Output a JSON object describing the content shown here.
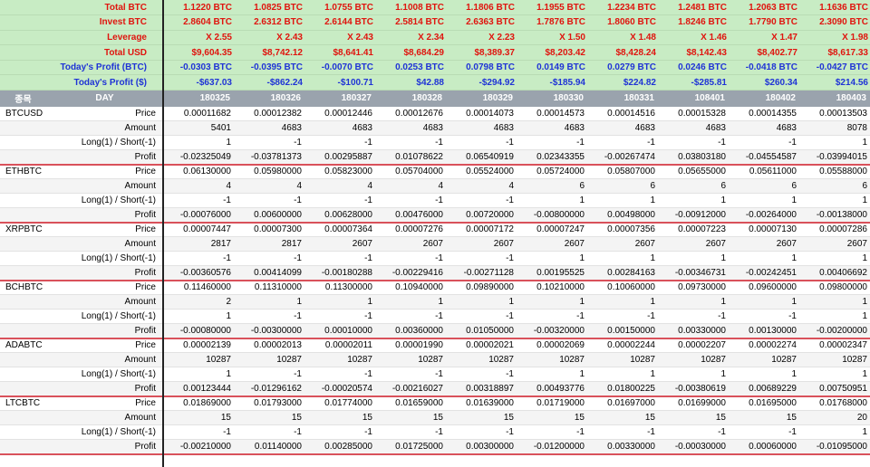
{
  "summary": [
    {
      "label": "Total BTC",
      "label_color": "red",
      "value_color": "red",
      "values": [
        "1.1220 BTC",
        "1.0825 BTC",
        "1.0755 BTC",
        "1.1008 BTC",
        "1.1806 BTC",
        "1.1955 BTC",
        "1.2234 BTC",
        "1.2481 BTC",
        "1.2063 BTC",
        "1.1636 BTC"
      ]
    },
    {
      "label": "Invest BTC",
      "label_color": "red",
      "value_color": "red",
      "values": [
        "2.8604 BTC",
        "2.6312 BTC",
        "2.6144 BTC",
        "2.5814 BTC",
        "2.6363 BTC",
        "1.7876 BTC",
        "1.8060 BTC",
        "1.8246 BTC",
        "1.7790 BTC",
        "2.3090 BTC"
      ]
    },
    {
      "label": "Leverage",
      "label_color": "red",
      "value_color": "red",
      "values": [
        "X 2.55",
        "X 2.43",
        "X 2.43",
        "X 2.34",
        "X 2.23",
        "X 1.50",
        "X 1.48",
        "X 1.46",
        "X 1.47",
        "X 1.98"
      ]
    },
    {
      "label": "Total USD",
      "label_color": "red",
      "value_color": "red",
      "values": [
        "$9,604.35",
        "$8,742.12",
        "$8,641.41",
        "$8,684.29",
        "$8,389.37",
        "$8,203.42",
        "$8,428.24",
        "$8,142.43",
        "$8,402.77",
        "$8,617.33"
      ]
    },
    {
      "label": "Today's Profit (BTC)",
      "label_color": "blue",
      "value_color": "blue",
      "values": [
        "-0.0303 BTC",
        "-0.0395 BTC",
        "-0.0070 BTC",
        "0.0253 BTC",
        "0.0798 BTC",
        "0.0149 BTC",
        "0.0279 BTC",
        "0.0246 BTC",
        "-0.0418 BTC",
        "-0.0427 BTC"
      ]
    },
    {
      "label": "Today's Profit ($)",
      "label_color": "blue",
      "value_color": "blue",
      "values": [
        "-$637.03",
        "-$862.24",
        "-$100.71",
        "$42.88",
        "-$294.92",
        "-$185.94",
        "$224.82",
        "-$285.81",
        "$260.34",
        "$214.56"
      ]
    }
  ],
  "header": {
    "symbol_col": "종목",
    "day_col": "DAY",
    "days": [
      "180325",
      "180326",
      "180327",
      "180328",
      "180329",
      "180330",
      "180331",
      "108401",
      "180402",
      "180403"
    ]
  },
  "row_labels": {
    "price": "Price",
    "amount": "Amount",
    "side": "Long(1) / Short(-1)",
    "profit": "Profit"
  },
  "groups": [
    {
      "symbol": "BTCUSD",
      "price": [
        "0.00011682",
        "0.00012382",
        "0.00012446",
        "0.00012676",
        "0.00014073",
        "0.00014573",
        "0.00014516",
        "0.00015328",
        "0.00014355",
        "0.00013503"
      ],
      "amount": [
        "5401",
        "4683",
        "4683",
        "4683",
        "4683",
        "4683",
        "4683",
        "4683",
        "4683",
        "8078"
      ],
      "side": [
        "1",
        "-1",
        "-1",
        "-1",
        "-1",
        "-1",
        "-1",
        "-1",
        "-1",
        "1"
      ],
      "profit": [
        "-0.02325049",
        "-0.03781373",
        "0.00295887",
        "0.01078622",
        "0.06540919",
        "0.02343355",
        "-0.00267474",
        "0.03803180",
        "-0.04554587",
        "-0.03994015"
      ]
    },
    {
      "symbol": "ETHBTC",
      "price": [
        "0.06130000",
        "0.05980000",
        "0.05823000",
        "0.05704000",
        "0.05524000",
        "0.05724000",
        "0.05807000",
        "0.05655000",
        "0.05611000",
        "0.05588000"
      ],
      "amount": [
        "4",
        "4",
        "4",
        "4",
        "4",
        "6",
        "6",
        "6",
        "6",
        "6"
      ],
      "side": [
        "-1",
        "-1",
        "-1",
        "-1",
        "-1",
        "1",
        "1",
        "1",
        "1",
        "1"
      ],
      "profit": [
        "-0.00076000",
        "0.00600000",
        "0.00628000",
        "0.00476000",
        "0.00720000",
        "-0.00800000",
        "0.00498000",
        "-0.00912000",
        "-0.00264000",
        "-0.00138000"
      ]
    },
    {
      "symbol": "XRPBTC",
      "price": [
        "0.00007447",
        "0.00007300",
        "0.00007364",
        "0.00007276",
        "0.00007172",
        "0.00007247",
        "0.00007356",
        "0.00007223",
        "0.00007130",
        "0.00007286"
      ],
      "amount": [
        "2817",
        "2817",
        "2607",
        "2607",
        "2607",
        "2607",
        "2607",
        "2607",
        "2607",
        "2607"
      ],
      "side": [
        "-1",
        "-1",
        "-1",
        "-1",
        "-1",
        "1",
        "1",
        "1",
        "1",
        "1"
      ],
      "profit": [
        "-0.00360576",
        "0.00414099",
        "-0.00180288",
        "-0.00229416",
        "-0.00271128",
        "0.00195525",
        "0.00284163",
        "-0.00346731",
        "-0.00242451",
        "0.00406692"
      ]
    },
    {
      "symbol": "BCHBTC",
      "price": [
        "0.11460000",
        "0.11310000",
        "0.11300000",
        "0.10940000",
        "0.09890000",
        "0.10210000",
        "0.10060000",
        "0.09730000",
        "0.09600000",
        "0.09800000"
      ],
      "amount": [
        "2",
        "1",
        "1",
        "1",
        "1",
        "1",
        "1",
        "1",
        "1",
        "1"
      ],
      "side": [
        "1",
        "-1",
        "-1",
        "-1",
        "-1",
        "-1",
        "-1",
        "-1",
        "-1",
        "1"
      ],
      "profit": [
        "-0.00080000",
        "-0.00300000",
        "0.00010000",
        "0.00360000",
        "0.01050000",
        "-0.00320000",
        "0.00150000",
        "0.00330000",
        "0.00130000",
        "-0.00200000"
      ]
    },
    {
      "symbol": "ADABTC",
      "price": [
        "0.00002139",
        "0.00002013",
        "0.00002011",
        "0.00001990",
        "0.00002021",
        "0.00002069",
        "0.00002244",
        "0.00002207",
        "0.00002274",
        "0.00002347"
      ],
      "amount": [
        "10287",
        "10287",
        "10287",
        "10287",
        "10287",
        "10287",
        "10287",
        "10287",
        "10287",
        "10287"
      ],
      "side": [
        "1",
        "-1",
        "-1",
        "-1",
        "-1",
        "1",
        "1",
        "1",
        "1",
        "1"
      ],
      "profit": [
        "0.00123444",
        "-0.01296162",
        "-0.00020574",
        "-0.00216027",
        "0.00318897",
        "0.00493776",
        "0.01800225",
        "-0.00380619",
        "0.00689229",
        "0.00750951"
      ]
    },
    {
      "symbol": "LTCBTC",
      "price": [
        "0.01869000",
        "0.01793000",
        "0.01774000",
        "0.01659000",
        "0.01639000",
        "0.01719000",
        "0.01697000",
        "0.01699000",
        "0.01695000",
        "0.01768000"
      ],
      "amount": [
        "15",
        "15",
        "15",
        "15",
        "15",
        "15",
        "15",
        "15",
        "15",
        "20"
      ],
      "side": [
        "-1",
        "-1",
        "-1",
        "-1",
        "-1",
        "-1",
        "-1",
        "-1",
        "-1",
        "1"
      ],
      "profit": [
        "-0.00210000",
        "0.01140000",
        "0.00285000",
        "0.01725000",
        "0.00300000",
        "-0.01200000",
        "0.00330000",
        "-0.00030000",
        "0.00060000",
        "-0.01095000"
      ]
    }
  ]
}
